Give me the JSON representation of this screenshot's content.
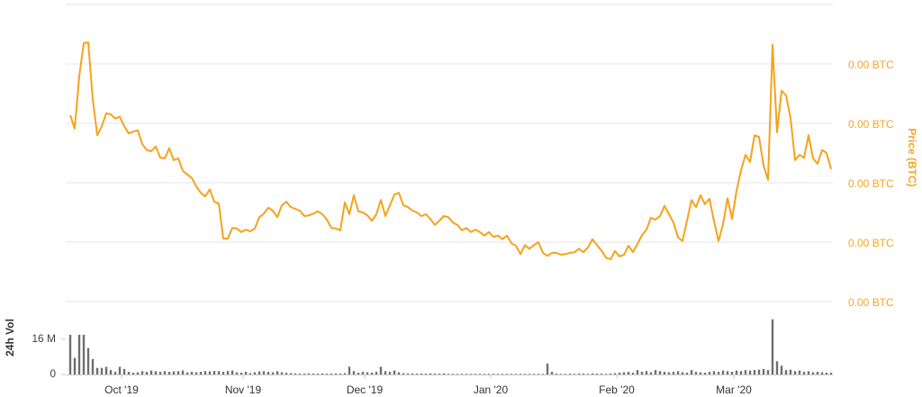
{
  "chart_data": [
    {
      "type": "line",
      "y_label": "Price (BTC)",
      "color": "#f7a21b",
      "grid": true,
      "ylim": [
        0,
        5e-05
      ],
      "yticks": [
        {
          "value": 0,
          "label": "0.00 BTC"
        },
        {
          "value": 1e-05,
          "label": "0.00 BTC"
        },
        {
          "value": 2e-05,
          "label": "0.00 BTC"
        },
        {
          "value": 3e-05,
          "label": "0.00 BTC"
        },
        {
          "value": 4e-05,
          "label": "0.00 BTC"
        }
      ],
      "values": [
        3.14e-05,
        2.91e-05,
        3.79e-05,
        4.35e-05,
        4.36e-05,
        3.41e-05,
        2.8e-05,
        2.95e-05,
        3.17e-05,
        3.15e-05,
        3.08e-05,
        3.11e-05,
        2.95e-05,
        2.83e-05,
        2.86e-05,
        2.88e-05,
        2.65e-05,
        2.55e-05,
        2.53e-05,
        2.61e-05,
        2.42e-05,
        2.41e-05,
        2.58e-05,
        2.38e-05,
        2.41e-05,
        2.2e-05,
        2.14e-05,
        2.08e-05,
        1.94e-05,
        1.83e-05,
        1.77e-05,
        1.89e-05,
        1.68e-05,
        1.65e-05,
        1.06e-05,
        1.06e-05,
        1.24e-05,
        1.23e-05,
        1.17e-05,
        1.21e-05,
        1.18e-05,
        1.23e-05,
        1.42e-05,
        1.48e-05,
        1.58e-05,
        1.53e-05,
        1.42e-05,
        1.62e-05,
        1.68e-05,
        1.59e-05,
        1.56e-05,
        1.53e-05,
        1.44e-05,
        1.45e-05,
        1.48e-05,
        1.52e-05,
        1.47e-05,
        1.38e-05,
        1.24e-05,
        1.23e-05,
        1.2e-05,
        1.67e-05,
        1.47e-05,
        1.79e-05,
        1.52e-05,
        1.5e-05,
        1.45e-05,
        1.36e-05,
        1.47e-05,
        1.71e-05,
        1.44e-05,
        1.62e-05,
        1.8e-05,
        1.83e-05,
        1.62e-05,
        1.59e-05,
        1.53e-05,
        1.5e-05,
        1.44e-05,
        1.47e-05,
        1.39e-05,
        1.29e-05,
        1.36e-05,
        1.44e-05,
        1.42e-05,
        1.33e-05,
        1.29e-05,
        1.2e-05,
        1.24e-05,
        1.17e-05,
        1.21e-05,
        1.17e-05,
        1.11e-05,
        1.17e-05,
        1.09e-05,
        1.11e-05,
        1.05e-05,
        1.11e-05,
        9.8e-06,
        9.4e-06,
        8e-06,
        9.5e-06,
        8.9e-06,
        9.5e-06,
        1e-05,
        8.2e-06,
        7.7e-06,
        8.2e-06,
        8.2e-06,
        7.9e-06,
        8e-06,
        8.2e-06,
        8.3e-06,
        8.9e-06,
        8.3e-06,
        9.1e-06,
        1.05e-05,
        9.5e-06,
        8.6e-06,
        7.4e-06,
        7.1e-06,
        8.5e-06,
        7.6e-06,
        7.9e-06,
        9.4e-06,
        8.3e-06,
        9.7e-06,
        1.12e-05,
        1.21e-05,
        1.41e-05,
        1.38e-05,
        1.44e-05,
        1.61e-05,
        1.47e-05,
        1.33e-05,
        1.08e-05,
        1.02e-05,
        1.36e-05,
        1.71e-05,
        1.59e-05,
        1.79e-05,
        1.64e-05,
        1.73e-05,
        1.35e-05,
        1.02e-05,
        1.3e-05,
        1.74e-05,
        1.39e-05,
        1.86e-05,
        2.21e-05,
        2.47e-05,
        2.35e-05,
        2.8e-05,
        2.77e-05,
        2.29e-05,
        2.05e-05,
        4.32e-05,
        2.85e-05,
        3.55e-05,
        3.47e-05,
        3.09e-05,
        2.38e-05,
        2.47e-05,
        2.42e-05,
        2.8e-05,
        2.41e-05,
        2.32e-05,
        2.55e-05,
        2.5e-05,
        2.23e-05
      ]
    },
    {
      "type": "bar",
      "y_label": "24h Vol",
      "color": "#6e6e6e",
      "ylim": [
        0,
        31000000.0
      ],
      "yticks": [
        0,
        {
          "value": 16000000,
          "label": "16 M"
        }
      ],
      "xlim": [
        0,
        169
      ],
      "xticks": [
        {
          "value": 11.4,
          "label": "Oct '19"
        },
        {
          "value": 38.4,
          "label": "Nov '19"
        },
        {
          "value": 65.4,
          "label": "Dec '19"
        },
        {
          "value": 93.4,
          "label": "Jan '20"
        },
        {
          "value": 121.4,
          "label": "Feb '20"
        },
        {
          "value": 147.4,
          "label": "Mar '20"
        }
      ],
      "values": [
        18000000.0,
        7500000.0,
        18000000.0,
        18000000.0,
        12000000.0,
        7000000.0,
        3000000.0,
        3000000.0,
        3500000.0,
        2000000.0,
        1200000.0,
        3500000.0,
        2500000.0,
        1200000.0,
        800000.0,
        1000000.0,
        1500000.0,
        1200000.0,
        1800000.0,
        1500000.0,
        1200000.0,
        1500000.0,
        1200000.0,
        1400000.0,
        1500000.0,
        1800000.0,
        1000000.0,
        1200000.0,
        1000000.0,
        1200000.0,
        1500000.0,
        1400000.0,
        1600000.0,
        1500000.0,
        1200000.0,
        1600000.0,
        1800000.0,
        1000000.0,
        800000.0,
        1200000.0,
        600000.0,
        1000000.0,
        1400000.0,
        1500000.0,
        1200000.0,
        1000000.0,
        1500000.0,
        1000000.0,
        800000.0,
        600000.0,
        500000.0,
        400000.0,
        400000.0,
        500000.0,
        400000.0,
        400000.0,
        500000.0,
        400000.0,
        400000.0,
        500000.0,
        400000.0,
        600000.0,
        3500000.0,
        1500000.0,
        800000.0,
        1200000.0,
        1000000.0,
        800000.0,
        1200000.0,
        3500000.0,
        1500000.0,
        1200000.0,
        1800000.0,
        1000000.0,
        600000.0,
        500000.0,
        500000.0,
        400000.0,
        500000.0,
        400000.0,
        500000.0,
        400000.0,
        400000.0,
        500000.0,
        300000.0,
        300000.0,
        300000.0,
        300000.0,
        300000.0,
        300000.0,
        300000.0,
        300000.0,
        300000.0,
        300000.0,
        300000.0,
        300000.0,
        300000.0,
        300000.0,
        300000.0,
        300000.0,
        300000.0,
        300000.0,
        300000.0,
        300000.0,
        300000.0,
        300000.0,
        5000000.0,
        1200000.0,
        400000.0,
        300000.0,
        300000.0,
        400000.0,
        300000.0,
        500000.0,
        400000.0,
        300000.0,
        500000.0,
        400000.0,
        400000.0,
        300000.0,
        500000.0,
        600000.0,
        800000.0,
        1000000.0,
        1200000.0,
        800000.0,
        2000000.0,
        1200000.0,
        1500000.0,
        1000000.0,
        2000000.0,
        1500000.0,
        1200000.0,
        1000000.0,
        1200000.0,
        1500000.0,
        1000000.0,
        800000.0,
        2000000.0,
        1200000.0,
        1000000.0,
        800000.0,
        1200000.0,
        1500000.0,
        1200000.0,
        1800000.0,
        1500000.0,
        1200000.0,
        1800000.0,
        1500000.0,
        2000000.0,
        1800000.0,
        2000000.0,
        2200000.0,
        2500000.0,
        2000000.0,
        25000000.0,
        6000000.0,
        4000000.0,
        2000000.0,
        2200000.0,
        1500000.0,
        1800000.0,
        1200000.0,
        1500000.0,
        1000000.0,
        1200000.0,
        1000000.0,
        800000.0,
        800000.0
      ]
    }
  ]
}
